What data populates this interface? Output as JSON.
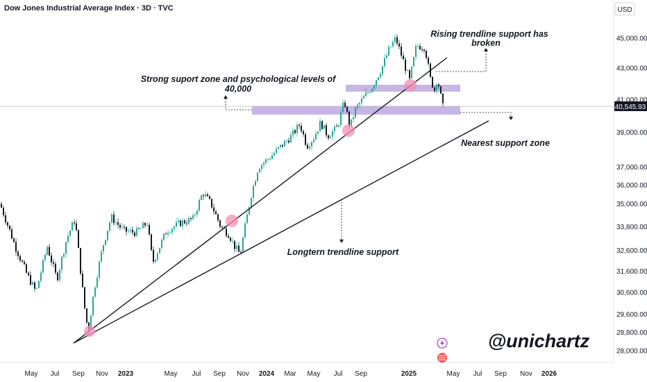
{
  "header": {
    "title": "Dow Jones Industrial Average Index · 3D · TVC",
    "currency": "USD"
  },
  "chart_data": {
    "type": "candlestick",
    "title": "Dow Jones Industrial Average Index · 3D · TVC",
    "x_labels": [
      "May",
      "Jul",
      "Sep",
      "Nov",
      "2023",
      "May",
      "Jul",
      "Sep",
      "Nov",
      "2024",
      "Mar",
      "May",
      "Jul",
      "Sep",
      "2025",
      "May",
      "Jul",
      "Sep",
      "Nov",
      "2026"
    ],
    "y_ticks": [
      45000,
      43000,
      41000,
      39000,
      37000,
      36000,
      35000,
      33800,
      32600,
      31600,
      30600,
      29600,
      28800,
      28000
    ],
    "y_tick_labels": [
      "45,000.00",
      "43,000.00",
      "41,000.00",
      "39,000.00",
      "37,000.00",
      "36,000.00",
      "35,000.00",
      "33,800.00",
      "32,600.00",
      "31,600.00",
      "30,600.00",
      "29,600.00",
      "28,800.00",
      "28,000.00"
    ],
    "last_price": 40545.93,
    "last_price_label": "40,545.93",
    "colors": {
      "up": "#26a69a",
      "down": "#131722",
      "zone": "#b39ddb",
      "highlight": "#f48fb1"
    },
    "annotations": [
      {
        "text_lines": [
          "Strong suport zone and psychological levels of",
          "40,000"
        ]
      },
      {
        "text_lines": [
          "Rising trendline support has",
          "broken"
        ]
      },
      {
        "text_lines": [
          "Nearest support zone"
        ]
      },
      {
        "text_lines": [
          "Longtern trendline support"
        ]
      }
    ],
    "watermark": "@unichartz"
  }
}
